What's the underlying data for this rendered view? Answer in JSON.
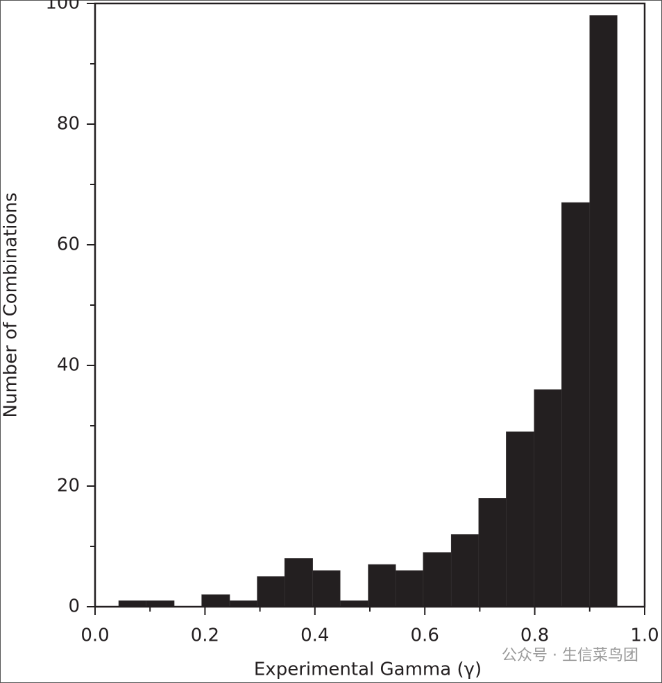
{
  "chart_data": {
    "type": "histogram",
    "xlabel": "Experimental Gamma (γ)",
    "ylabel": "Number of Combinations",
    "bins": [
      0.043,
      0.093,
      0.144,
      0.194,
      0.245,
      0.295,
      0.345,
      0.396,
      0.446,
      0.497,
      0.547,
      0.597,
      0.648,
      0.698,
      0.748,
      0.799,
      0.849,
      0.9,
      0.95
    ],
    "values": [
      1,
      1,
      0,
      2,
      1,
      5,
      8,
      6,
      1,
      7,
      6,
      9,
      12,
      18,
      29,
      36,
      67,
      98
    ],
    "color": "#231f20",
    "xlim": [
      0,
      1
    ],
    "xticks": [
      {
        "value": 0,
        "label": "0.0"
      },
      0.2,
      0.4,
      0.6,
      0.8,
      {
        "value": 1,
        "label": "1.0"
      }
    ],
    "xminor_ticks": [
      0.1,
      0.3,
      0.5,
      0.7,
      0.9
    ],
    "ylim": [
      0,
      100
    ],
    "yticks": [
      0,
      20,
      40,
      60,
      80,
      100
    ],
    "yminor_ticks": [
      10,
      30,
      50,
      70,
      90
    ],
    "watermark": "公众号 · 生信菜鸟团"
  }
}
